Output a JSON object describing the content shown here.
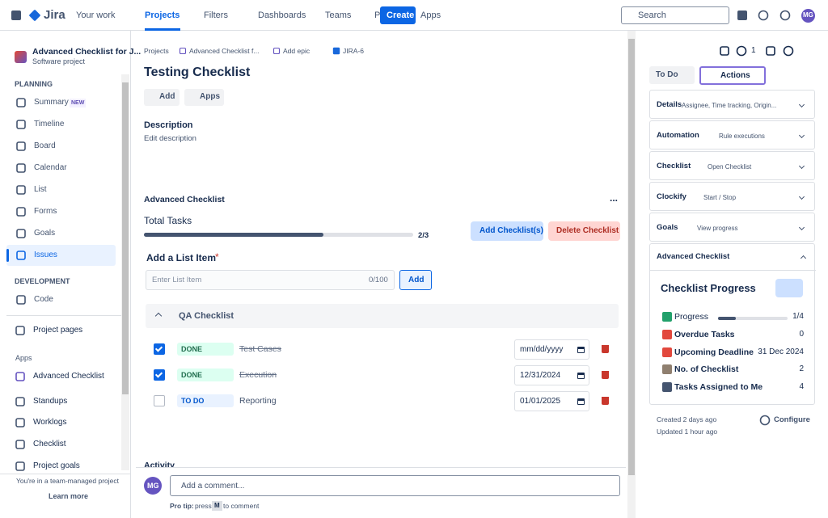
{
  "nav": {
    "product": "Jira",
    "items": [
      "Your work",
      "Projects",
      "Filters",
      "Dashboards",
      "Teams",
      "Plans",
      "Apps"
    ],
    "create": "Create",
    "search": "Search",
    "avatar": "MG"
  },
  "sidebar": {
    "project_name": "Advanced Checklist for J...",
    "project_type": "Software project",
    "planning": {
      "heading": "PLANNING",
      "items": [
        "Summary",
        "Timeline",
        "Board",
        "Calendar",
        "List",
        "Forms",
        "Goals",
        "Issues"
      ],
      "badge": "NEW"
    },
    "development": {
      "heading": "DEVELOPMENT",
      "items": [
        "Code"
      ]
    },
    "project_pages": "Project pages",
    "apps": {
      "heading": "Apps",
      "items": [
        "Advanced Checklist",
        "Standups",
        "Worklogs",
        "Checklist",
        "Project goals"
      ]
    },
    "footer": "You're in a team-managed project",
    "learn_more": "Learn more"
  },
  "issue": {
    "breadcrumbs": [
      "Projects",
      "Advanced Checklist f...",
      "Add epic",
      "JIRA-6"
    ],
    "title": "Testing Checklist",
    "buttons": [
      "Add",
      "Apps"
    ],
    "description_heading": "Description",
    "description_placeholder": "Edit description",
    "checklist": {
      "heading": "Advanced Checklist",
      "more": "...",
      "total_label": "Total Tasks",
      "total_progress": "2/3",
      "add_button": "Add Checklist(s)",
      "delete_button": "Delete Checklist",
      "add_item_label": "Add a List Item",
      "required": "*",
      "input_placeholder": "Enter List Item",
      "char_count": "0/100",
      "add": "Add",
      "group": "QA Checklist",
      "items": [
        {
          "status": "DONE",
          "text": "Test Cases",
          "date": "mm/dd/yyyy",
          "checked": true
        },
        {
          "status": "DONE",
          "text": "Execution",
          "date": "12/31/2024",
          "checked": true
        },
        {
          "status": "TO DO",
          "text": "Reporting",
          "date": "01/01/2025",
          "checked": false
        }
      ]
    },
    "activity": "Activity",
    "comment": {
      "avatar": "MG",
      "placeholder": "Add a comment...",
      "tip_label": "Pro tip:",
      "tip_press": "press",
      "tip_key": "M",
      "tip_rest": "to comment"
    }
  },
  "details": {
    "watchers": "1",
    "status": "To Do",
    "actions": "Actions",
    "panels": [
      {
        "title": "Details",
        "hint": "Assignee, Time tracking, Origin..."
      },
      {
        "title": "Automation",
        "hint": "Rule executions"
      },
      {
        "title": "Checklist",
        "hint": "Open Checklist"
      },
      {
        "title": "Clockify",
        "hint": "Start / Stop"
      },
      {
        "title": "Goals",
        "hint": "View progress"
      }
    ],
    "app_panel": "Advanced Checklist",
    "progress": {
      "title": "Checklist Progress",
      "rows": [
        {
          "label": "Progress",
          "value": "1/4"
        },
        {
          "label": "Overdue Tasks",
          "value": "0"
        },
        {
          "label": "Upcoming Deadline",
          "value": "31 Dec 2024"
        },
        {
          "label": "No. of Checklist",
          "value": "2"
        },
        {
          "label": "Tasks Assigned to Me",
          "value": "4"
        }
      ]
    },
    "created": "Created 2 days ago",
    "updated": "Updated 1 hour ago",
    "configure": "Configure"
  }
}
